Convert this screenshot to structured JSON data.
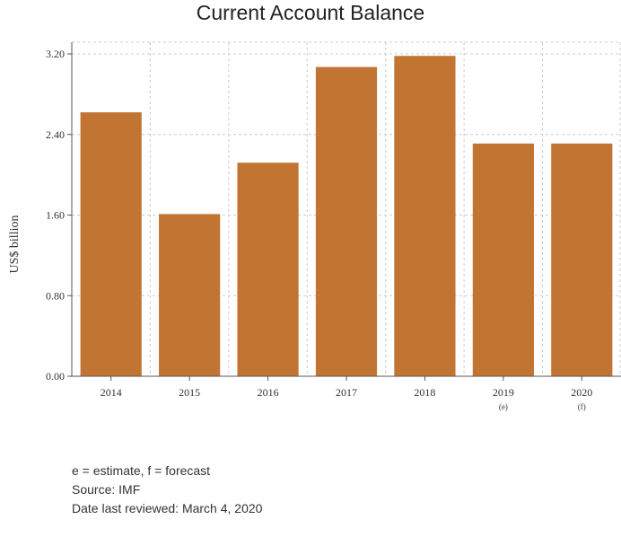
{
  "chart_data": {
    "type": "bar",
    "title": "Current Account Balance",
    "ylabel": "US$ billion",
    "xlabel": "",
    "categories": [
      "2014",
      "2015",
      "2016",
      "2017",
      "2018",
      "2019",
      "2020"
    ],
    "category_notes": [
      "",
      "",
      "",
      "",
      "",
      "(e)",
      "(f)"
    ],
    "values": [
      2.62,
      1.61,
      2.12,
      3.07,
      3.18,
      2.31,
      2.31
    ],
    "ylim": [
      0,
      3.2
    ],
    "yticks": [
      "0.00",
      "0.80",
      "1.60",
      "2.40",
      "3.20"
    ],
    "grid": true,
    "bar_color": "#c27533"
  },
  "footnotes": {
    "legend_note": "e = estimate, f = forecast",
    "source": "Source: IMF",
    "reviewed": "Date last reviewed: March 4, 2020"
  }
}
